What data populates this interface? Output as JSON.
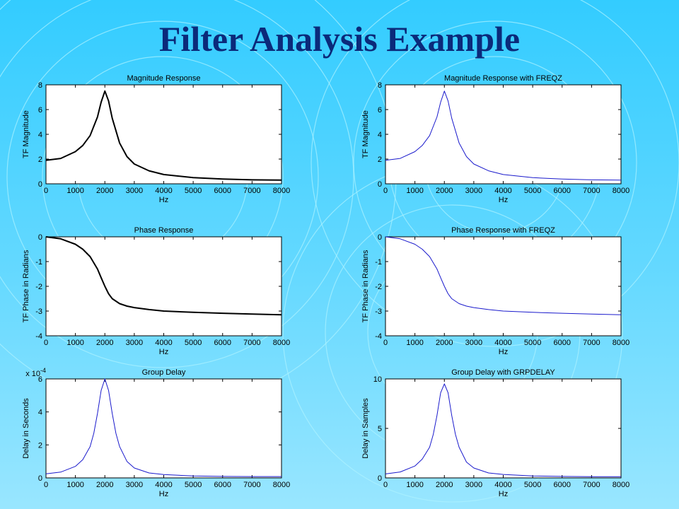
{
  "slide": {
    "title": "Filter Analysis Example",
    "background_color": "#33ccff",
    "title_color": "#0b2a7a",
    "ring_color": "#aef2ff"
  },
  "chart_data": [
    {
      "type": "line",
      "title": "Magnitude Response",
      "xlabel": "Hz",
      "ylabel": "TF Magnitude",
      "xlim": [
        0,
        8000
      ],
      "ylim": [
        0,
        8
      ],
      "xticks": [
        0,
        1000,
        2000,
        3000,
        4000,
        5000,
        6000,
        7000,
        8000
      ],
      "yticks": [
        0,
        2,
        4,
        6,
        8
      ],
      "line_color": "#000000",
      "line_width": 2,
      "series": [
        {
          "x": [
            0,
            500,
            1000,
            1250,
            1500,
            1750,
            1875,
            2000,
            2125,
            2250,
            2500,
            2750,
            3000,
            3500,
            4000,
            5000,
            6000,
            7000,
            8000
          ],
          "values": [
            1.9,
            2.05,
            2.6,
            3.1,
            3.9,
            5.4,
            6.6,
            7.5,
            6.7,
            5.3,
            3.3,
            2.2,
            1.6,
            1.05,
            0.75,
            0.5,
            0.38,
            0.32,
            0.3
          ]
        }
      ]
    },
    {
      "type": "line",
      "title": "Magnitude Response with FREQZ",
      "xlabel": "Hz",
      "ylabel": "TF Magnitude",
      "xlim": [
        0,
        8000
      ],
      "ylim": [
        0,
        8
      ],
      "xticks": [
        0,
        1000,
        2000,
        3000,
        4000,
        5000,
        6000,
        7000,
        8000
      ],
      "yticks": [
        0,
        2,
        4,
        6,
        8
      ],
      "line_color": "#1a1acc",
      "line_width": 1,
      "series": [
        {
          "x": [
            0,
            500,
            1000,
            1250,
            1500,
            1750,
            1875,
            2000,
            2125,
            2250,
            2500,
            2750,
            3000,
            3500,
            4000,
            5000,
            6000,
            7000,
            8000
          ],
          "values": [
            1.9,
            2.05,
            2.6,
            3.1,
            3.9,
            5.4,
            6.6,
            7.5,
            6.7,
            5.3,
            3.3,
            2.2,
            1.6,
            1.05,
            0.75,
            0.5,
            0.38,
            0.32,
            0.3
          ]
        }
      ]
    },
    {
      "type": "line",
      "title": "Phase Response",
      "xlabel": "Hz",
      "ylabel": "TF Phase in Radians",
      "xlim": [
        0,
        8000
      ],
      "ylim": [
        -4,
        0
      ],
      "xticks": [
        0,
        1000,
        2000,
        3000,
        4000,
        5000,
        6000,
        7000,
        8000
      ],
      "yticks": [
        0,
        -1,
        -2,
        -3,
        -4
      ],
      "line_color": "#000000",
      "line_width": 2,
      "series": [
        {
          "x": [
            0,
            500,
            1000,
            1250,
            1500,
            1750,
            1875,
            2000,
            2125,
            2250,
            2500,
            2750,
            3000,
            3500,
            4000,
            5000,
            6000,
            7000,
            8000
          ],
          "values": [
            0,
            -0.08,
            -0.3,
            -0.5,
            -0.8,
            -1.3,
            -1.65,
            -2.0,
            -2.3,
            -2.5,
            -2.7,
            -2.8,
            -2.86,
            -2.94,
            -3.0,
            -3.05,
            -3.09,
            -3.12,
            -3.15
          ]
        }
      ]
    },
    {
      "type": "line",
      "title": "Phase Response with FREQZ",
      "xlabel": "Hz",
      "ylabel": "TF Phase in Radians",
      "xlim": [
        0,
        8000
      ],
      "ylim": [
        -4,
        0
      ],
      "xticks": [
        0,
        1000,
        2000,
        3000,
        4000,
        5000,
        6000,
        7000,
        8000
      ],
      "yticks": [
        0,
        -1,
        -2,
        -3,
        -4
      ],
      "line_color": "#1a1acc",
      "line_width": 1,
      "series": [
        {
          "x": [
            0,
            500,
            1000,
            1250,
            1500,
            1750,
            1875,
            2000,
            2125,
            2250,
            2500,
            2750,
            3000,
            3500,
            4000,
            5000,
            6000,
            7000,
            8000
          ],
          "values": [
            0,
            -0.08,
            -0.3,
            -0.5,
            -0.8,
            -1.3,
            -1.65,
            -2.0,
            -2.3,
            -2.5,
            -2.7,
            -2.8,
            -2.86,
            -2.94,
            -3.0,
            -3.05,
            -3.09,
            -3.12,
            -3.15
          ]
        }
      ]
    },
    {
      "type": "line",
      "title": "Group Delay",
      "xlabel": "Hz",
      "ylabel": "Delay in Seconds",
      "xlim": [
        0,
        8000
      ],
      "ylim": [
        0,
        6
      ],
      "xticks": [
        0,
        1000,
        2000,
        3000,
        4000,
        5000,
        6000,
        7000,
        8000
      ],
      "yticks": [
        0,
        2,
        4,
        6
      ],
      "y_exponent": "x 10",
      "y_exponent_power": "-4",
      "line_color": "#1a1acc",
      "line_width": 1,
      "series": [
        {
          "x": [
            0,
            500,
            1000,
            1250,
            1500,
            1625,
            1750,
            1875,
            2000,
            2125,
            2250,
            2375,
            2500,
            2750,
            3000,
            3500,
            4000,
            5000,
            6000,
            7000,
            8000
          ],
          "values": [
            0.25,
            0.35,
            0.7,
            1.1,
            1.9,
            2.7,
            3.9,
            5.3,
            6.0,
            5.3,
            3.9,
            2.7,
            1.9,
            1.0,
            0.6,
            0.3,
            0.2,
            0.12,
            0.09,
            0.08,
            0.08
          ]
        }
      ]
    },
    {
      "type": "line",
      "title": "Group Delay with GRPDELAY",
      "xlabel": "Hz",
      "ylabel": "Delay in Samples",
      "xlim": [
        0,
        8000
      ],
      "ylim": [
        0,
        10
      ],
      "xticks": [
        0,
        1000,
        2000,
        3000,
        4000,
        5000,
        6000,
        7000,
        8000
      ],
      "yticks": [
        0,
        5,
        10
      ],
      "line_color": "#1a1acc",
      "line_width": 1,
      "series": [
        {
          "x": [
            0,
            500,
            1000,
            1250,
            1500,
            1625,
            1750,
            1875,
            2000,
            2125,
            2250,
            2375,
            2500,
            2750,
            3000,
            3500,
            4000,
            5000,
            6000,
            7000,
            8000
          ],
          "values": [
            0.4,
            0.6,
            1.2,
            1.9,
            3.1,
            4.4,
            6.3,
            8.6,
            9.5,
            8.6,
            6.3,
            4.4,
            3.1,
            1.6,
            1.0,
            0.5,
            0.35,
            0.2,
            0.15,
            0.13,
            0.13
          ]
        }
      ]
    }
  ]
}
